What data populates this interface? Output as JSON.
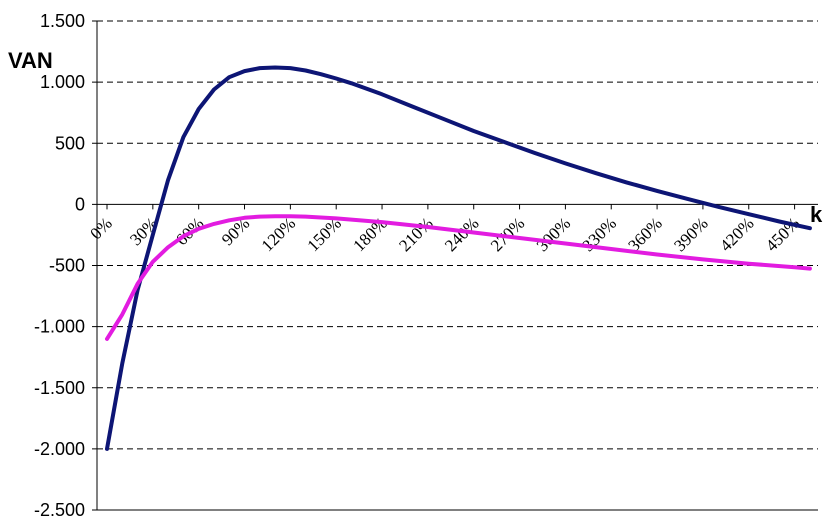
{
  "chart_data": {
    "type": "line",
    "ylabel": "VAN",
    "xlabel": "k",
    "ylim": [
      -2500,
      1500
    ],
    "xlim": [
      0,
      4.6
    ],
    "y_ticks": [
      1500,
      1000,
      500,
      0,
      -500,
      -1000,
      -1500,
      -2000,
      -2500
    ],
    "y_tick_labels": [
      "1.500",
      "1.000",
      "500",
      "0",
      "-500",
      "-1.000",
      "-1.500",
      "-2.000",
      "-2.500"
    ],
    "x_ticks": [
      0,
      0.3,
      0.6,
      0.9,
      1.2,
      1.5,
      1.8,
      2.1,
      2.4,
      2.7,
      3.0,
      3.3,
      3.6,
      3.9,
      4.2,
      4.5
    ],
    "x_tick_labels": [
      "0%",
      "30%",
      "60%",
      "90%",
      "120%",
      "150%",
      "180%",
      "210%",
      "240%",
      "270%",
      "300%",
      "330%",
      "360%",
      "390%",
      "420%",
      "450%"
    ],
    "grid": "horizontal dashed",
    "legend": "none",
    "series": [
      {
        "color": "#0d1575",
        "x": [
          0,
          0.1,
          0.2,
          0.3,
          0.4,
          0.5,
          0.6,
          0.7,
          0.8,
          0.9,
          1.0,
          1.1,
          1.2,
          1.3,
          1.4,
          1.5,
          1.6,
          1.8,
          2.0,
          2.2,
          2.4,
          2.6,
          2.8,
          3.0,
          3.2,
          3.4,
          3.6,
          3.8,
          4.0,
          4.2,
          4.4,
          4.6
        ],
        "y": [
          -2000,
          -1300,
          -700,
          -250,
          200,
          550,
          780,
          940,
          1040,
          1090,
          1115,
          1120,
          1115,
          1095,
          1065,
          1030,
          990,
          900,
          800,
          700,
          600,
          510,
          420,
          335,
          255,
          180,
          110,
          45,
          -20,
          -80,
          -140,
          -195
        ]
      },
      {
        "color": "#e21ce0",
        "x": [
          0,
          0.1,
          0.2,
          0.3,
          0.4,
          0.5,
          0.6,
          0.7,
          0.8,
          0.9,
          1.0,
          1.1,
          1.2,
          1.3,
          1.5,
          1.8,
          2.1,
          2.4,
          2.7,
          3.0,
          3.3,
          3.6,
          3.9,
          4.2,
          4.5,
          4.6
        ],
        "y": [
          -1100,
          -900,
          -650,
          -470,
          -350,
          -260,
          -200,
          -160,
          -130,
          -110,
          -100,
          -97,
          -97,
          -100,
          -115,
          -145,
          -185,
          -230,
          -275,
          -320,
          -365,
          -410,
          -450,
          -485,
          -515,
          -525
        ]
      }
    ]
  }
}
